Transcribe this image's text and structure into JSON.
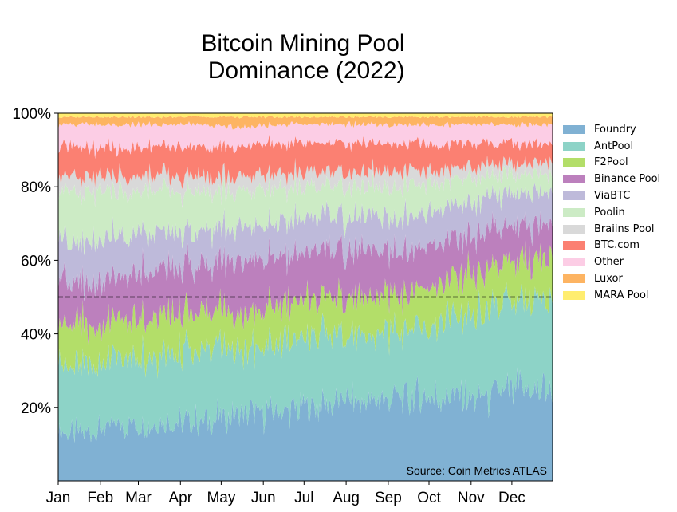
{
  "chart_data": {
    "type": "area",
    "stacked": true,
    "normalized_percent": true,
    "title_line1": "Bitcoin Mining Pool",
    "title_line2": " Dominance (2022)",
    "x_tick_labels": [
      "Jan",
      "Feb",
      "Mar",
      "Apr",
      "May",
      "Jun",
      "Jul",
      "Aug",
      "Sep",
      "Oct",
      "Nov",
      "Dec"
    ],
    "y_tick_labels": [
      "20%",
      "40%",
      "60%",
      "80%",
      "100%"
    ],
    "y_ticks": [
      20,
      40,
      60,
      80,
      100
    ],
    "ylim": [
      0,
      100
    ],
    "reference_line": {
      "value": 50,
      "style": "dashed",
      "color": "#000000"
    },
    "annotation": "Source: Coin Metrics ATLAS",
    "legend_position": "right",
    "series": [
      {
        "name": "Foundry",
        "color": "#80b1d3",
        "monthly_avg": [
          13,
          15,
          16,
          16,
          18,
          19,
          21,
          22,
          22,
          23,
          23,
          24
        ]
      },
      {
        "name": "AntPool",
        "color": "#8dd3c7",
        "monthly_avg": [
          18,
          18,
          19,
          19,
          18,
          19,
          18,
          17,
          19,
          21,
          23,
          24
        ]
      },
      {
        "name": "F2Pool",
        "color": "#b3de69",
        "monthly_avg": [
          11,
          10,
          10,
          10,
          10,
          10,
          10,
          10,
          10,
          10,
          11,
          11
        ]
      },
      {
        "name": "Binance Pool",
        "color": "#bc80bd",
        "monthly_avg": [
          12,
          12,
          12,
          13,
          13,
          13,
          13,
          13,
          12,
          11,
          10,
          9
        ]
      },
      {
        "name": "ViaBTC",
        "color": "#bebada",
        "monthly_avg": [
          11,
          11,
          10,
          9,
          9,
          9,
          9,
          9,
          9,
          9,
          9,
          9
        ]
      },
      {
        "name": "Poolin",
        "color": "#ccebc5",
        "monthly_avg": [
          13,
          12,
          11,
          11,
          10,
          9,
          8,
          8,
          8,
          7,
          6,
          5
        ]
      },
      {
        "name": "Braiins Pool",
        "color": "#d9d9d9",
        "monthly_avg": [
          4,
          4,
          4,
          4,
          4,
          4,
          4,
          4,
          4,
          3,
          3,
          3
        ]
      },
      {
        "name": "BTC.com",
        "color": "#fb8072",
        "monthly_avg": [
          8,
          8,
          8,
          8,
          8,
          8,
          8,
          8,
          7,
          7,
          6,
          5
        ]
      },
      {
        "name": "Other",
        "color": "#fccde5",
        "monthly_avg": [
          6,
          6,
          6,
          6,
          5,
          5,
          5,
          5,
          5,
          5,
          5,
          5
        ]
      },
      {
        "name": "Luxor",
        "color": "#fdb462",
        "monthly_avg": [
          2,
          2,
          2,
          2,
          3,
          2,
          2,
          2,
          2,
          2,
          2,
          2
        ]
      },
      {
        "name": "MARA Pool",
        "color": "#ffed6f",
        "monthly_avg": [
          1,
          1,
          1,
          1,
          1,
          1,
          1,
          1,
          1,
          1,
          1,
          1
        ]
      }
    ]
  }
}
